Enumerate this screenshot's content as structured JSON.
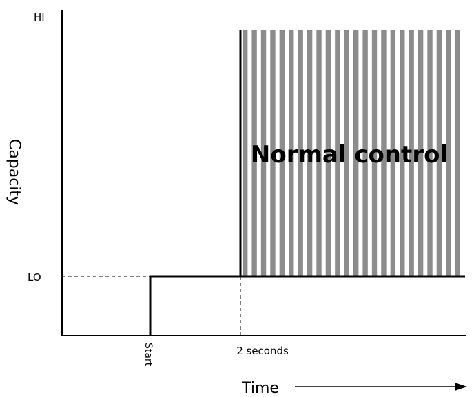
{
  "diagram": {
    "y_axis_label": "Capacity",
    "x_axis_label": "Time",
    "y_ticks": {
      "hi": "HI",
      "lo": "LO"
    },
    "x_ticks": {
      "start": "Start",
      "two_seconds": "2 seconds"
    },
    "region_label": "Normal control",
    "colors": {
      "stripe": "#8c8c8c",
      "line": "#000000"
    },
    "stripe_count": 24
  }
}
